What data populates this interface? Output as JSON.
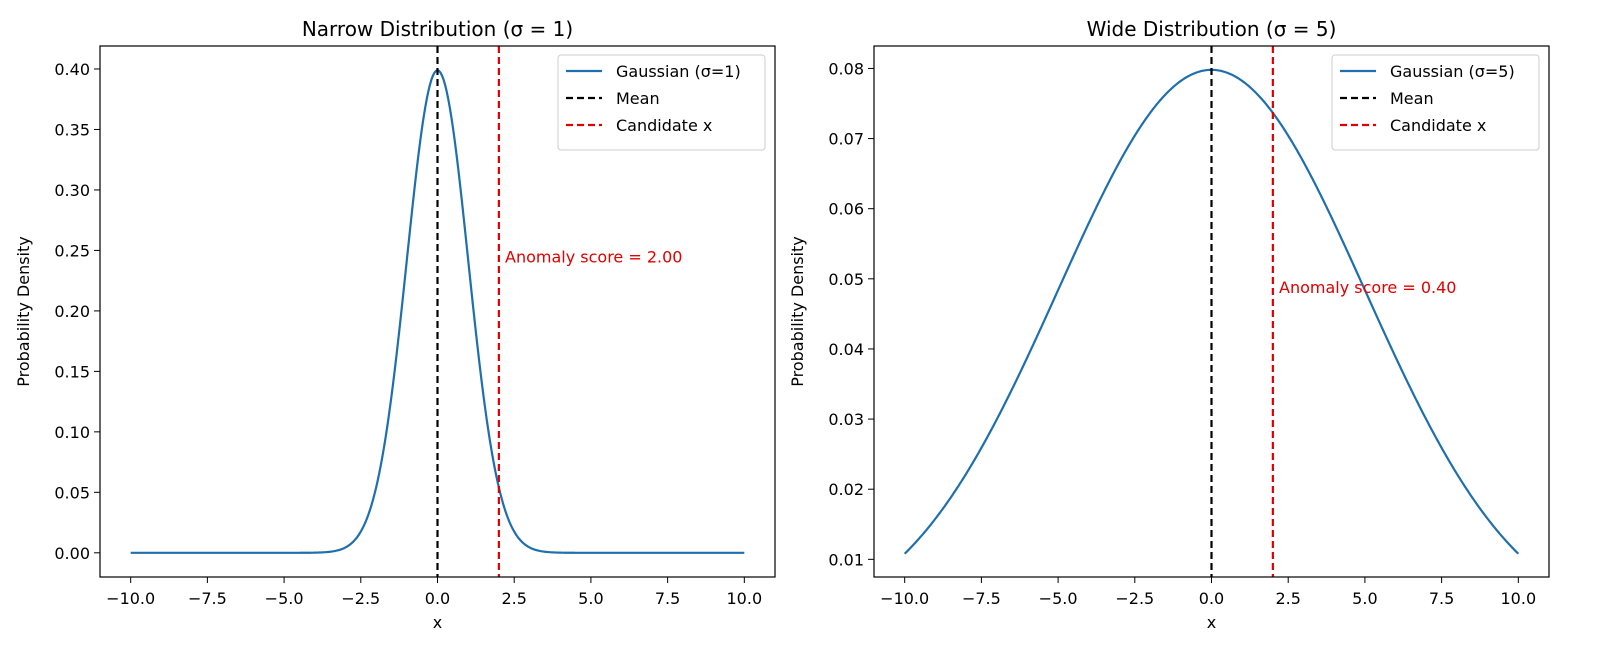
{
  "chart_data": [
    {
      "type": "line",
      "title": "Narrow Distribution (σ = 1)",
      "xlabel": "x",
      "ylabel": "Probability Density",
      "xlim": [
        -11.0,
        11.0
      ],
      "ylim": [
        -0.02,
        0.419
      ],
      "xticks": [
        -10.0,
        -7.5,
        -5.0,
        -2.5,
        0.0,
        2.5,
        5.0,
        7.5,
        10.0
      ],
      "xtick_labels": [
        "−10.0",
        "−7.5",
        "−5.0",
        "−2.5",
        "0.0",
        "2.5",
        "5.0",
        "7.5",
        "10.0"
      ],
      "yticks": [
        0.0,
        0.05,
        0.1,
        0.15,
        0.2,
        0.25,
        0.3,
        0.35,
        0.4
      ],
      "ytick_labels": [
        "0.00",
        "0.05",
        "0.10",
        "0.15",
        "0.20",
        "0.25",
        "0.30",
        "0.35",
        "0.40"
      ],
      "series": [
        {
          "name": "Gaussian (σ=1)",
          "color": "#1f6fad",
          "x": [
            -10,
            -4,
            -3.5,
            -3,
            -2.5,
            -2,
            -1.5,
            -1,
            -0.5,
            0,
            0.5,
            1,
            1.5,
            2,
            2.5,
            3,
            3.5,
            4,
            10
          ],
          "y": [
            0.0,
            0.0001,
            0.0009,
            0.0044,
            0.0175,
            0.054,
            0.1295,
            0.242,
            0.3521,
            0.3989,
            0.3521,
            0.242,
            0.1295,
            0.054,
            0.0175,
            0.0044,
            0.0009,
            0.0001,
            0.0
          ]
        }
      ],
      "vlines": [
        {
          "name": "Mean",
          "x": 0,
          "color": "#000000",
          "style": "dashed"
        },
        {
          "name": "Candidate x",
          "x": 2,
          "color": "#e00000",
          "style": "dashed"
        }
      ],
      "annotation": {
        "text": "Anomaly score = 2.00",
        "x": 2.2,
        "y": 0.24,
        "color": "#e00000"
      },
      "legend_position": "top-right",
      "grid": false
    },
    {
      "type": "line",
      "title": "Wide Distribution (σ = 5)",
      "xlabel": "x",
      "ylabel": "Probability Density",
      "xlim": [
        -11.0,
        11.0
      ],
      "ylim": [
        0.00748,
        0.0832
      ],
      "xticks": [
        -10.0,
        -7.5,
        -5.0,
        -2.5,
        0.0,
        2.5,
        5.0,
        7.5,
        10.0
      ],
      "xtick_labels": [
        "−10.0",
        "−7.5",
        "−5.0",
        "−2.5",
        "0.0",
        "2.5",
        "5.0",
        "7.5",
        "10.0"
      ],
      "yticks": [
        0.01,
        0.02,
        0.03,
        0.04,
        0.05,
        0.06,
        0.07,
        0.08
      ],
      "ytick_labels": [
        "0.01",
        "0.02",
        "0.03",
        "0.04",
        "0.05",
        "0.06",
        "0.07",
        "0.08"
      ],
      "series": [
        {
          "name": "Gaussian (σ=5)",
          "color": "#1f6fad",
          "x": [
            -10,
            -9,
            -8,
            -7,
            -6,
            -5,
            -4,
            -3,
            -2,
            -1,
            0,
            1,
            2,
            3,
            4,
            5,
            6,
            7,
            8,
            9,
            10
          ],
          "y": [
            0.0108,
            0.0158,
            0.0222,
            0.0299,
            0.0388,
            0.0484,
            0.0579,
            0.0666,
            0.0737,
            0.0782,
            0.0798,
            0.0782,
            0.0737,
            0.0666,
            0.0579,
            0.0484,
            0.0388,
            0.0299,
            0.0222,
            0.0158,
            0.0108
          ]
        }
      ],
      "vlines": [
        {
          "name": "Mean",
          "x": 0,
          "color": "#000000",
          "style": "dashed"
        },
        {
          "name": "Candidate x",
          "x": 2,
          "color": "#e00000",
          "style": "dashed"
        }
      ],
      "annotation": {
        "text": "Anomaly score = 0.40",
        "x": 2.2,
        "y": 0.048,
        "color": "#e00000"
      },
      "legend_position": "top-right",
      "grid": false
    }
  ]
}
